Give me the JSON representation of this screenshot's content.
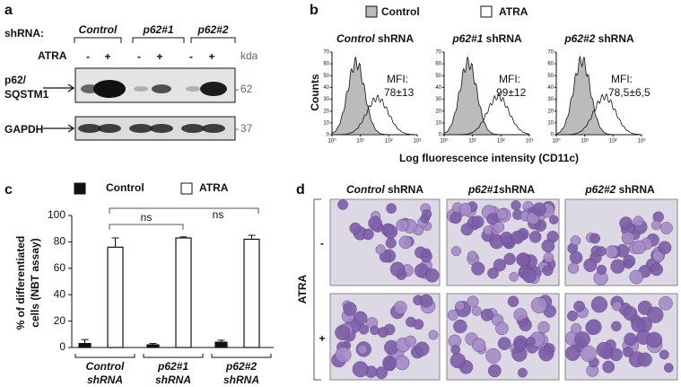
{
  "panel_labels": [
    "a",
    "b",
    "c",
    "d"
  ],
  "blot": {
    "shrna_label": "shRNA:",
    "groups": [
      "Control",
      "p62#1",
      "p62#2"
    ],
    "treatment_label": "ATRA",
    "lanes": [
      "-",
      "+",
      "-",
      "+",
      "-",
      "+"
    ],
    "unit": "kda",
    "rows": [
      {
        "label": [
          "p62/",
          "SQSTM1"
        ],
        "size": "62"
      },
      {
        "label": [
          "GAPDH"
        ],
        "size": "37"
      }
    ]
  },
  "flow": {
    "legend": [
      "Control",
      "ATRA"
    ],
    "y_label": "Counts",
    "x_label": "Log fluorescence intensity (CD11c)",
    "mfi_label": "MFI:",
    "yticks": [
      0,
      10,
      20,
      30,
      40,
      50,
      60,
      70
    ],
    "xticks": [
      {
        "value": 0,
        "label": "10⁰"
      },
      {
        "value": 1,
        "label": "10¹"
      },
      {
        "value": 2,
        "label": "10²"
      },
      {
        "value": 3,
        "label": "10³"
      }
    ],
    "plots": [
      {
        "title": [
          "Control",
          "shRNA"
        ],
        "mfi": "78±13"
      },
      {
        "title": [
          "p62#1",
          "shRNA"
        ],
        "mfi": "99±12"
      },
      {
        "title": [
          "p62#2",
          "shRNA"
        ],
        "mfi": "78,5±6,5"
      }
    ]
  },
  "chart_data": {
    "type": "bar",
    "y_label": [
      "% of differentiated",
      "cells (NBT assay)"
    ],
    "categories": [
      [
        "Control",
        "shRNA"
      ],
      [
        "p62#1",
        "shRNA"
      ],
      [
        "p62#2",
        "shRNA"
      ]
    ],
    "series": [
      {
        "name": "Control",
        "color": "#111111",
        "values": [
          3,
          2,
          4
        ],
        "errors": [
          3,
          1,
          1.5
        ]
      },
      {
        "name": "ATRA",
        "color": "#ffffff",
        "values": [
          76,
          83,
          82
        ],
        "errors": [
          7,
          0.8,
          3
        ]
      }
    ],
    "ylim": [
      0,
      100
    ],
    "yticks": [
      0,
      20,
      40,
      60,
      80,
      100
    ],
    "annotations": [
      "ns",
      "ns"
    ]
  },
  "micrographs": {
    "col_headers": [
      [
        "Control",
        "shRNA"
      ],
      [
        "p62#1",
        "shRNA"
      ],
      [
        "p62#2",
        "shRNA"
      ]
    ],
    "row_labels": [
      "-",
      "+"
    ],
    "row_title": "ATRA"
  }
}
